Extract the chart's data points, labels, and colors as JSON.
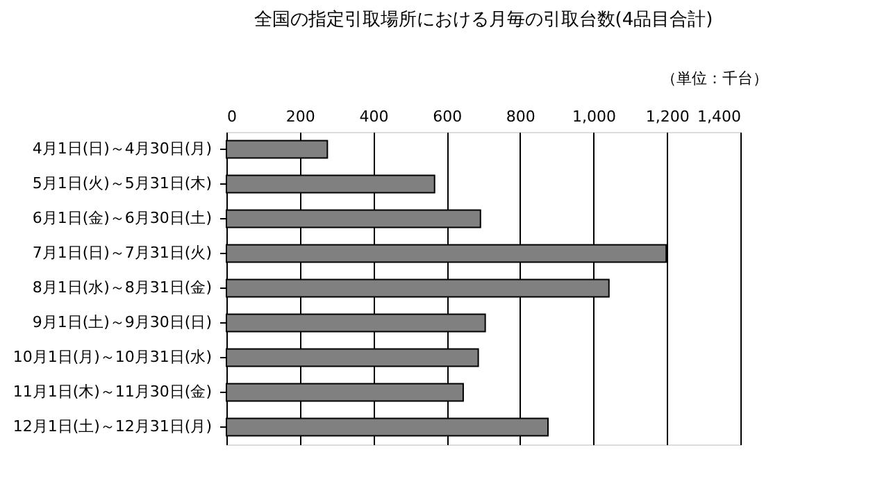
{
  "chart_data": {
    "type": "bar",
    "orientation": "horizontal",
    "title": "全国の指定引取場所における月毎の引取台数(4品目合計)",
    "annotations": [
      "（単位：千台）"
    ],
    "categories": [
      "4月1日(日)～4月30日(月)",
      "5月1日(火)～5月31日(木)",
      "6月1日(金)～6月30日(土)",
      "7月1日(日)～7月31日(火)",
      "8月1日(水)～8月31日(金)",
      "9月1日(土)～9月30日(日)",
      "10月1日(月)～10月31日(水)",
      "11月1日(木)～11月30日(金)",
      "12月1日(土)～12月31日(月)"
    ],
    "values": [
      275,
      567,
      692,
      1198,
      1042,
      705,
      686,
      645,
      876
    ],
    "color": "#808080",
    "xlim": [
      0,
      1400
    ],
    "xticks": [
      0,
      200,
      400,
      600,
      800,
      {
        "value": 1000,
        "label": "1,000"
      },
      {
        "value": 1200,
        "label": "1,200"
      },
      {
        "value": 1400,
        "label": "1,400"
      }
    ],
    "grid": "x"
  }
}
